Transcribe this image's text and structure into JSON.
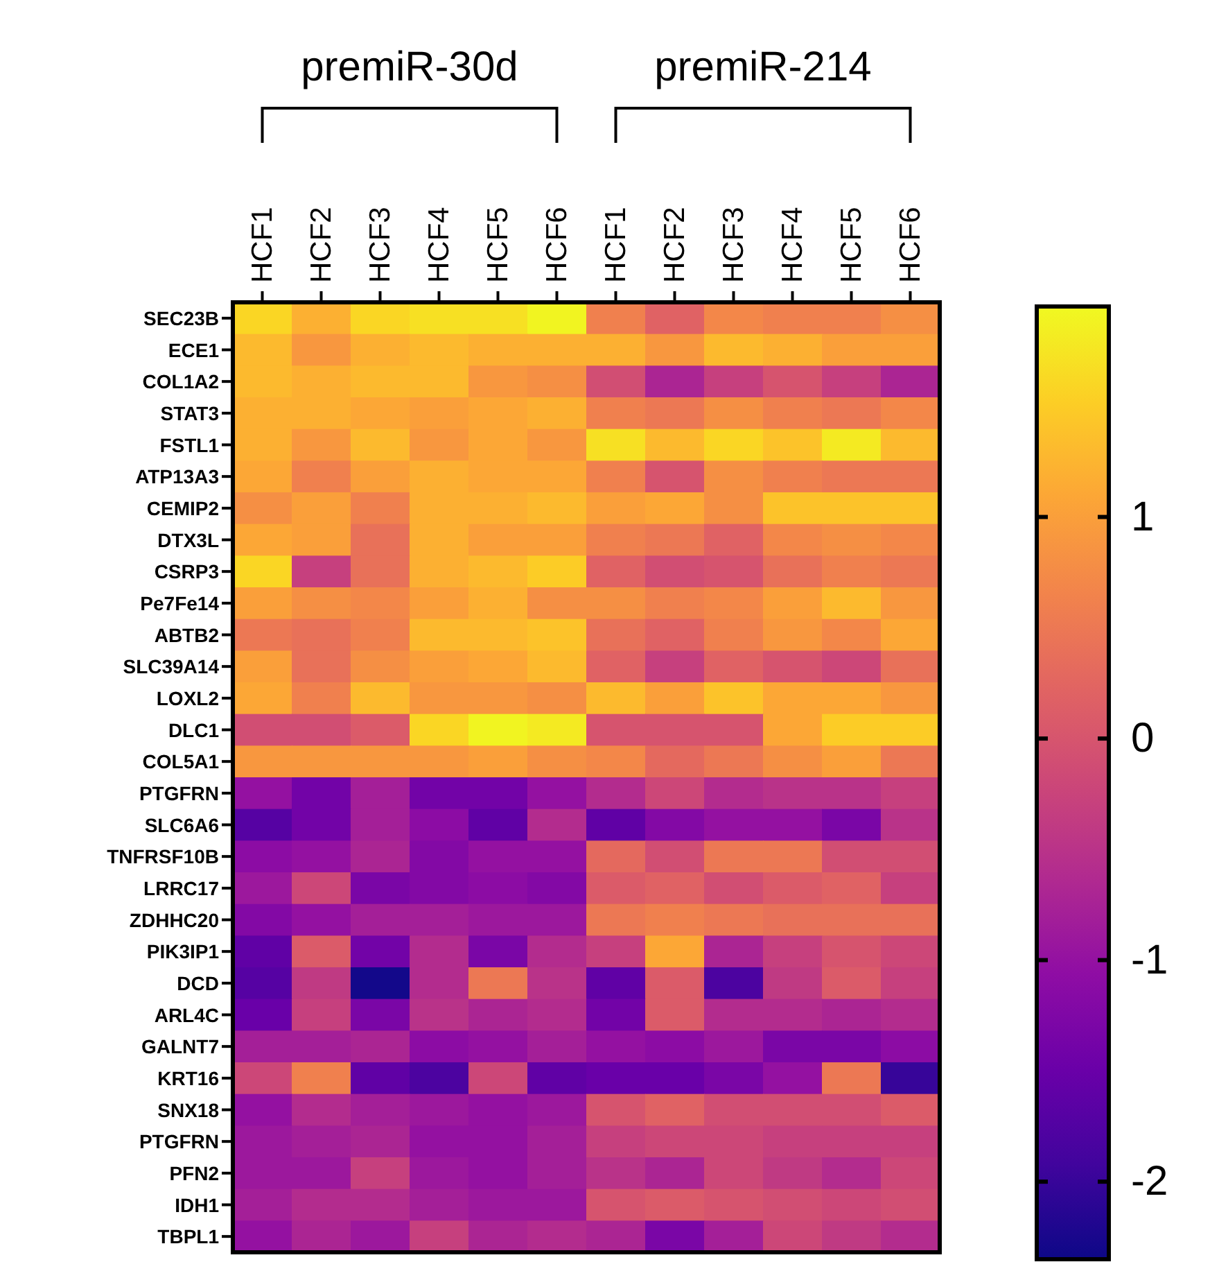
{
  "chart_data": {
    "type": "heatmap",
    "annotations": [
      "premiR-30d",
      "premiR-214"
    ],
    "categories": [
      "HCF1",
      "HCF2",
      "HCF3",
      "HCF4",
      "HCF5",
      "HCF6",
      "HCF1",
      "HCF2",
      "HCF3",
      "HCF4",
      "HCF5",
      "HCF6"
    ],
    "y_categories": [
      "SEC23B",
      "ECE1",
      "COL1A2",
      "STAT3",
      "FSTL1",
      "ATP13A3",
      "CEMIP2",
      "DTX3L",
      "CSRP3",
      "Pe7Fe14",
      "ABTB2",
      "SLC39A14",
      "LOXL2",
      "DLC1",
      "COL5A1",
      "PTGFRN",
      "SLC6A6",
      "TNFRSF10B",
      "LRRC17",
      "ZDHHC20",
      "PIK3IP1",
      "DCD",
      "ARL4C",
      "GALNT7",
      "KRT16",
      "SNX18",
      "PTGFRN",
      "PFN2",
      "IDH1",
      "TBPL1"
    ],
    "cells": [
      [
        1.6,
        1.2,
        1.6,
        1.7,
        1.7,
        1.9,
        0.6,
        0.2,
        0.7,
        0.6,
        0.6,
        0.8
      ],
      [
        1.3,
        0.9,
        1.2,
        1.3,
        1.2,
        1.2,
        1.2,
        0.9,
        1.3,
        1.2,
        1.0,
        1.0
      ],
      [
        1.3,
        1.2,
        1.3,
        1.3,
        0.9,
        0.8,
        -0.1,
        -0.7,
        -0.3,
        0.0,
        -0.3,
        -0.7
      ],
      [
        1.2,
        1.2,
        1.1,
        1.0,
        1.1,
        1.2,
        0.6,
        0.5,
        0.8,
        0.6,
        0.5,
        0.7
      ],
      [
        1.2,
        0.9,
        1.3,
        0.9,
        1.1,
        0.9,
        1.7,
        1.3,
        1.6,
        1.4,
        1.8,
        1.3
      ],
      [
        1.1,
        0.6,
        1.0,
        1.2,
        1.1,
        1.1,
        0.6,
        0.0,
        0.8,
        0.6,
        0.5,
        0.5
      ],
      [
        0.8,
        1.0,
        0.6,
        1.2,
        1.2,
        1.3,
        1.0,
        1.1,
        0.8,
        1.4,
        1.4,
        1.4
      ],
      [
        1.1,
        1.0,
        0.4,
        1.2,
        1.0,
        1.0,
        0.6,
        0.5,
        0.2,
        0.7,
        0.8,
        0.7
      ],
      [
        1.6,
        -0.3,
        0.4,
        1.2,
        1.3,
        1.5,
        0.2,
        -0.1,
        0.0,
        0.4,
        0.6,
        0.5
      ],
      [
        1.0,
        0.8,
        0.7,
        1.0,
        1.2,
        0.8,
        0.8,
        0.6,
        0.7,
        1.0,
        1.3,
        0.9
      ],
      [
        0.5,
        0.4,
        0.6,
        1.3,
        1.3,
        1.4,
        0.4,
        0.2,
        0.6,
        0.9,
        0.7,
        1.1
      ],
      [
        1.0,
        0.4,
        0.8,
        1.0,
        1.1,
        1.3,
        0.2,
        -0.3,
        0.2,
        0.0,
        -0.2,
        0.4
      ],
      [
        1.1,
        0.6,
        1.3,
        0.9,
        0.9,
        0.8,
        1.3,
        1.0,
        1.4,
        1.1,
        1.1,
        0.9
      ],
      [
        -0.1,
        -0.1,
        0.1,
        1.6,
        1.9,
        1.8,
        0.0,
        0.0,
        0.0,
        1.1,
        1.5,
        1.5
      ],
      [
        0.9,
        0.9,
        0.9,
        0.9,
        1.0,
        0.8,
        0.7,
        0.3,
        0.5,
        0.8,
        1.0,
        0.5
      ],
      [
        -1.0,
        -1.4,
        -0.8,
        -1.4,
        -1.4,
        -1.0,
        -0.6,
        -0.2,
        -0.6,
        -0.5,
        -0.5,
        -0.3
      ],
      [
        -1.7,
        -1.4,
        -0.8,
        -1.1,
        -1.6,
        -0.6,
        -1.6,
        -1.2,
        -1.0,
        -1.0,
        -1.3,
        -0.5
      ],
      [
        -1.1,
        -1.0,
        -0.7,
        -1.2,
        -1.0,
        -1.0,
        0.3,
        -0.1,
        0.5,
        0.5,
        -0.1,
        -0.1
      ],
      [
        -0.9,
        -0.2,
        -1.3,
        -1.2,
        -1.1,
        -1.2,
        0.1,
        0.2,
        -0.1,
        0.1,
        0.2,
        -0.3
      ],
      [
        -1.2,
        -1.0,
        -0.8,
        -0.8,
        -0.9,
        -0.9,
        0.5,
        0.6,
        0.5,
        0.4,
        0.4,
        0.4
      ],
      [
        -1.6,
        0.1,
        -1.4,
        -0.6,
        -1.3,
        -0.6,
        -0.3,
        1.1,
        -0.7,
        -0.3,
        0.0,
        -0.2
      ],
      [
        -1.7,
        -0.4,
        -2.3,
        -0.6,
        0.5,
        -0.5,
        -1.6,
        0.1,
        -1.8,
        -0.4,
        0.1,
        -0.3
      ],
      [
        -1.5,
        -0.3,
        -1.3,
        -0.5,
        -0.7,
        -0.6,
        -1.4,
        0.1,
        -0.6,
        -0.6,
        -0.7,
        -0.6
      ],
      [
        -0.8,
        -0.8,
        -0.7,
        -1.1,
        -1.0,
        -0.8,
        -1.0,
        -1.1,
        -0.9,
        -1.3,
        -1.3,
        -1.1
      ],
      [
        -0.2,
        0.6,
        -1.6,
        -1.8,
        -0.2,
        -1.6,
        -1.5,
        -1.5,
        -1.3,
        -1.0,
        0.5,
        -2.0
      ],
      [
        -1.0,
        -0.6,
        -0.8,
        -0.9,
        -1.0,
        -0.9,
        0.0,
        0.2,
        -0.1,
        -0.1,
        -0.1,
        0.1
      ],
      [
        -0.9,
        -0.8,
        -0.7,
        -1.0,
        -1.0,
        -0.8,
        -0.3,
        -0.2,
        -0.2,
        -0.3,
        -0.3,
        -0.3
      ],
      [
        -0.9,
        -0.9,
        -0.3,
        -0.9,
        -1.0,
        -0.8,
        -0.5,
        -0.7,
        -0.2,
        -0.4,
        -0.6,
        -0.2
      ],
      [
        -0.8,
        -0.6,
        -0.6,
        -0.8,
        -0.9,
        -0.9,
        0.0,
        0.1,
        0.0,
        -0.1,
        -0.2,
        -0.1
      ],
      [
        -1.0,
        -0.7,
        -0.9,
        -0.3,
        -0.7,
        -0.6,
        -0.7,
        -1.3,
        -0.8,
        -0.2,
        -0.4,
        -0.6
      ]
    ],
    "clim": [
      -2.35,
      1.95
    ],
    "cticks": [
      -2,
      -1,
      0,
      1
    ]
  }
}
